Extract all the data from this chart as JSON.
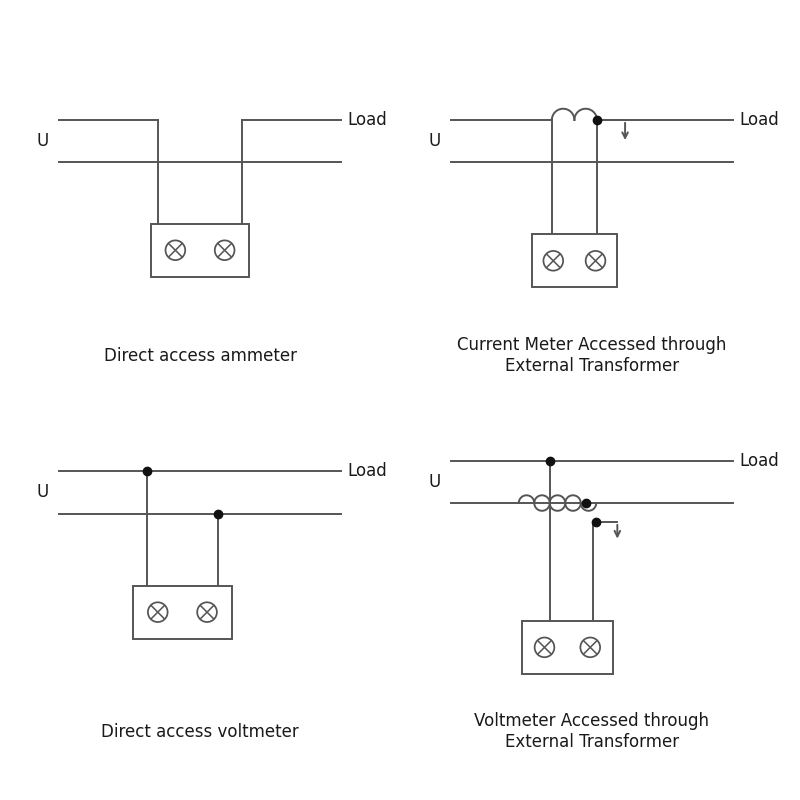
{
  "bg_color": "#ffffff",
  "line_color": "#555555",
  "dot_color": "#111111",
  "text_color": "#1a1a1a",
  "lw": 1.4,
  "dot_ms": 6,
  "font_size": 12,
  "label_U": "U",
  "label_Load": "Load",
  "titles": [
    "Direct access ammeter",
    "Current Meter Accessed through\nExternal Transformer",
    "Direct access voltmeter",
    "Voltmeter Accessed through\nExternal Transformer"
  ]
}
